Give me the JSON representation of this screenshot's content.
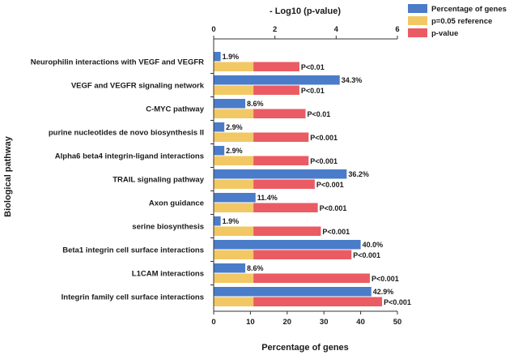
{
  "chart_data": {
    "type": "bar",
    "orientation": "horizontal",
    "title": "",
    "xlabel": "Percentage of genes",
    "x2label": "- Log10 (p-value)",
    "ylabel": "Biological pathway",
    "xlim": [
      0,
      50
    ],
    "x2lim": [
      0,
      6
    ],
    "xticks": [
      "0",
      "10",
      "20",
      "30",
      "40",
      "50"
    ],
    "x2ticks": [
      "0",
      "2",
      "4",
      "6"
    ],
    "categories": [
      "Neurophilin interactions with VEGF and VEGFR",
      "VEGF and VEGFR signaling network",
      "C-MYC pathway",
      "purine nucleotides de novo biosynthesis II",
      "Alpha6 beta4 integrin-ligand interactions",
      "TRAIL signaling pathway",
      "Axon guidance",
      "serine biosynthesis",
      "Beta1 integrin cell surface interactions",
      "L1CAM interactions",
      "Integrin family cell surface interactions"
    ],
    "series": [
      {
        "name": "Percentage of genes",
        "axis": "bottom",
        "color": "#4a7cc9",
        "values": [
          1.9,
          34.3,
          8.6,
          2.9,
          2.9,
          36.2,
          11.4,
          1.9,
          40.0,
          8.6,
          42.9
        ],
        "labels": [
          "1.9%",
          "34.3%",
          "8.6%",
          "2.9%",
          "2.9%",
          "36.2%",
          "11.4%",
          "1.9%",
          "40.0%",
          "8.6%",
          "42.9%"
        ]
      },
      {
        "name": "p=0.05 reference",
        "axis": "top",
        "color": "#f2c865",
        "values": [
          1.3,
          1.3,
          1.3,
          1.3,
          1.3,
          1.3,
          1.3,
          1.3,
          1.3,
          1.3,
          1.3
        ]
      },
      {
        "name": "p-value",
        "axis": "top",
        "color": "#ea5b63",
        "values": [
          2.8,
          2.8,
          3.0,
          3.1,
          3.1,
          3.3,
          3.4,
          3.5,
          4.5,
          5.1,
          5.5
        ],
        "labels": [
          "P<0.01",
          "P<0.01",
          "P<0.01",
          "P<0.001",
          "P<0.001",
          "P<0.001",
          "P<0.001",
          "P<0.001",
          "P<0.001",
          "P<0.001",
          "P<0.001"
        ]
      }
    ],
    "legend": {
      "position": "top-right",
      "entries": [
        "Percentage of genes",
        "p=0.05 reference",
        "p-value"
      ]
    },
    "grid": false
  }
}
